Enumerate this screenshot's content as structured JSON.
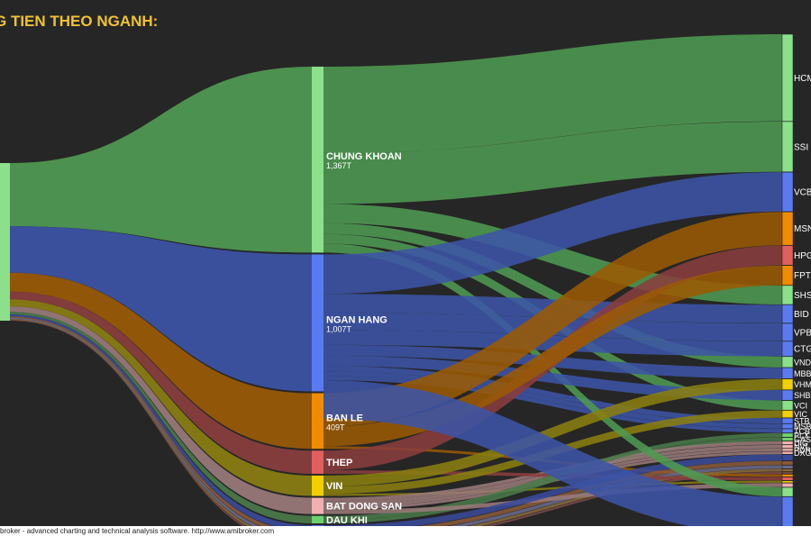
{
  "title": "G TIEN THEO NGANH:",
  "footer": "broker - advanced charting and technical analysis software. http://www.amibroker.com",
  "chart_data": {
    "type": "sankey",
    "sectors": [
      {
        "name": "CHUNG KHOAN",
        "value_label": "1,367T",
        "value": 1367,
        "color": "#4f9a52",
        "node_color": "#8ce08c"
      },
      {
        "name": "NGAN HANG",
        "value_label": "1,007T",
        "value": 1007,
        "color": "#3c54a6",
        "node_color": "#5a7bf0"
      },
      {
        "name": "BAN LE",
        "value_label": "409T",
        "value": 409,
        "color": "#9a5a05",
        "node_color": "#f08c00"
      },
      {
        "name": "THEP",
        "value_label": "",
        "value": 170,
        "color": "#8a3e3e",
        "node_color": "#e06060"
      },
      {
        "name": "VIN",
        "value_label": "",
        "value": 150,
        "color": "#8a7e10",
        "node_color": "#f0d000"
      },
      {
        "name": "BAT DONG SAN",
        "value_label": "",
        "value": 120,
        "color": "#9a7a7a",
        "node_color": "#f0b0b0"
      },
      {
        "name": "DAU KHI",
        "value_label": "",
        "value": 55,
        "color": "#4a7a4a",
        "node_color": "#6ed06e"
      },
      {
        "name": "",
        "value_label": "",
        "value": 45,
        "color": "#3a4a9a",
        "node_color": "#5a6ef0"
      },
      {
        "name": "",
        "value_label": "",
        "value": 30,
        "color": "#8a5a3a",
        "node_color": "#e0a070"
      },
      {
        "name": "",
        "value_label": "",
        "value": 25,
        "color": "#6a6a8a",
        "node_color": "#a0a0e0"
      },
      {
        "name": "",
        "value_label": "",
        "value": 20,
        "color": "#8a6a3a",
        "node_color": "#d0a060"
      },
      {
        "name": "",
        "value_label": "",
        "value": 15,
        "color": "#7a4a4a",
        "node_color": "#c08080"
      }
    ],
    "tickers": [
      {
        "name": "HCM",
        "sector": 0,
        "value": 640,
        "color": "#8ce08c"
      },
      {
        "name": "SSI",
        "sector": 0,
        "value": 370,
        "color": "#8ce08c"
      },
      {
        "name": "VCB",
        "sector": 1,
        "value": 290,
        "color": "#5a7bf0"
      },
      {
        "name": "MSN",
        "sector": 2,
        "value": 245,
        "color": "#f08c00"
      },
      {
        "name": "HPG",
        "sector": 3,
        "value": 145,
        "color": "#e06060"
      },
      {
        "name": "FPT",
        "sector": 2,
        "value": 145,
        "color": "#f08c00"
      },
      {
        "name": "SHS",
        "sector": 0,
        "value": 140,
        "color": "#8ce08c"
      },
      {
        "name": "BID",
        "sector": 1,
        "value": 135,
        "color": "#5a7bf0"
      },
      {
        "name": "VPB",
        "sector": 1,
        "value": 130,
        "color": "#5a7bf0"
      },
      {
        "name": "CTG",
        "sector": 1,
        "value": 110,
        "color": "#5a7bf0"
      },
      {
        "name": "VND",
        "sector": 0,
        "value": 80,
        "color": "#8ce08c"
      },
      {
        "name": "MBB",
        "sector": 1,
        "value": 80,
        "color": "#5a7bf0"
      },
      {
        "name": "VHM",
        "sector": 4,
        "value": 80,
        "color": "#f0d000"
      },
      {
        "name": "SHB",
        "sector": 1,
        "value": 75,
        "color": "#5a7bf0"
      },
      {
        "name": "VCI",
        "sector": 0,
        "value": 70,
        "color": "#8ce08c"
      },
      {
        "name": "VIC",
        "sector": 4,
        "value": 55,
        "color": "#f0d000"
      },
      {
        "name": "STB",
        "sector": 1,
        "value": 40,
        "color": "#5a7bf0"
      },
      {
        "name": "MSB",
        "sector": 1,
        "value": 35,
        "color": "#5a7bf0"
      },
      {
        "name": "TCB",
        "sector": 1,
        "value": 30,
        "color": "#5a7bf0"
      },
      {
        "name": "PLX",
        "sector": 6,
        "value": 30,
        "color": "#6ed06e"
      },
      {
        "name": "GAS",
        "sector": 6,
        "value": 25,
        "color": "#6ed06e"
      },
      {
        "name": "DIG",
        "sector": 5,
        "value": 25,
        "color": "#f0b0b0"
      },
      {
        "name": "NVL",
        "sector": 5,
        "value": 25,
        "color": "#f0b0b0"
      },
      {
        "name": "PDR",
        "sector": 5,
        "value": 20,
        "color": "#f0b0b0"
      },
      {
        "name": "DXG",
        "sector": 5,
        "value": 20,
        "color": "#f0b0b0"
      },
      {
        "name": "",
        "sector": 7,
        "value": 45,
        "color": "#3a4a9a"
      },
      {
        "name": "",
        "sector": 8,
        "value": 30,
        "color": "#8a5a3a"
      },
      {
        "name": "",
        "sector": 9,
        "value": 25,
        "color": "#6a6a8a"
      },
      {
        "name": "",
        "sector": 10,
        "value": 20,
        "color": "#8a6a3a"
      },
      {
        "name": "",
        "sector": 11,
        "value": 15,
        "color": "#7a4a4a"
      },
      {
        "name": "",
        "sector": 2,
        "value": 19,
        "color": "#f08c00"
      },
      {
        "name": "",
        "sector": 3,
        "value": 25,
        "color": "#e06060"
      },
      {
        "name": "",
        "sector": 4,
        "value": 15,
        "color": "#f0d000"
      },
      {
        "name": "",
        "sector": 5,
        "value": 30,
        "color": "#f0b0b0"
      },
      {
        "name": "",
        "sector": 0,
        "value": 67,
        "color": "#8ce08c"
      },
      {
        "name": "",
        "sector": 1,
        "value": 282,
        "color": "#5a7bf0"
      }
    ]
  }
}
